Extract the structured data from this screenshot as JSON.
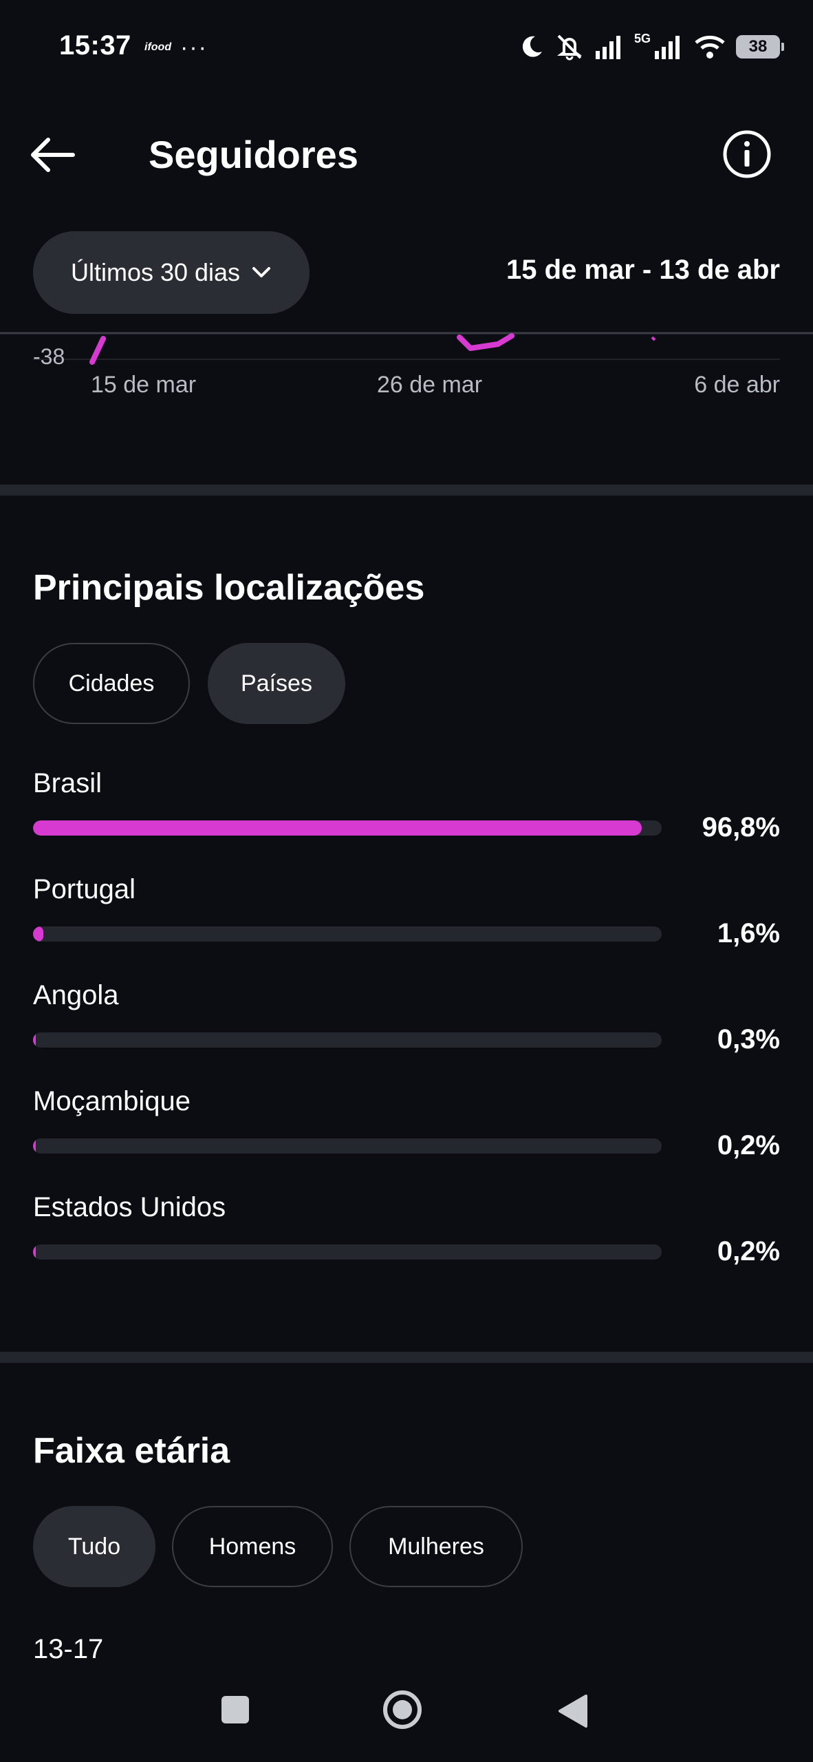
{
  "status_bar": {
    "time": "15:37",
    "app_badge": "ifood",
    "dots": "···",
    "network": "5G",
    "battery": "38"
  },
  "header": {
    "title": "Seguidores"
  },
  "period": {
    "label": "Últimos 30 dias",
    "range": "15 de mar - 13 de abr"
  },
  "chart_data": {
    "type": "line",
    "y_tick_visible": "-38",
    "x_ticks": [
      "15 de mar",
      "26 de mar",
      "6 de abr"
    ],
    "series_color": "#d63ad0"
  },
  "locations": {
    "title": "Principais localizações",
    "tabs": [
      {
        "label": "Cidades",
        "selected": false
      },
      {
        "label": "Países",
        "selected": true
      }
    ],
    "items": [
      {
        "name": "Brasil",
        "pct": "96,8%",
        "value": 96.8
      },
      {
        "name": "Portugal",
        "pct": "1,6%",
        "value": 1.6
      },
      {
        "name": "Angola",
        "pct": "0,3%",
        "value": 0.3
      },
      {
        "name": "Moçambique",
        "pct": "0,2%",
        "value": 0.2
      },
      {
        "name": "Estados Unidos",
        "pct": "0,2%",
        "value": 0.2
      }
    ]
  },
  "age": {
    "title": "Faixa etária",
    "tabs": [
      {
        "label": "Tudo",
        "selected": true
      },
      {
        "label": "Homens",
        "selected": false
      },
      {
        "label": "Mulheres",
        "selected": false
      }
    ],
    "first_range": "13-17"
  },
  "colors": {
    "background": "#0b0d12",
    "accent": "#d63ad0",
    "track": "#24272d",
    "chip": "#2a2d34"
  }
}
